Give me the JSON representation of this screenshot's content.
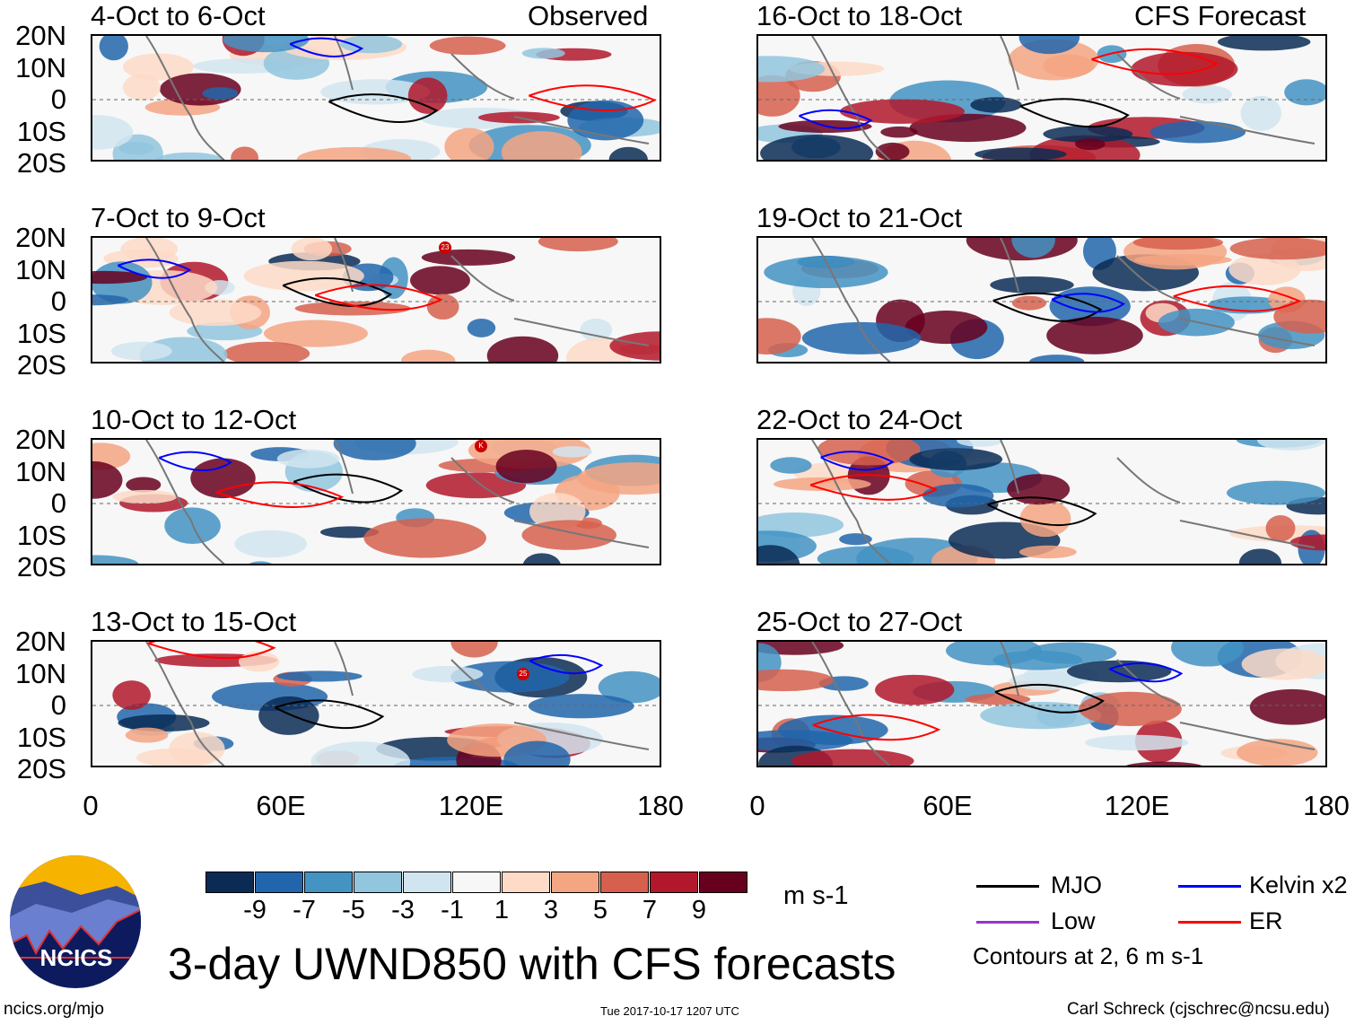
{
  "header": {
    "left_label": "Observed",
    "right_label": "CFS Forecast"
  },
  "panels": {
    "observed": [
      "4-Oct to 6-Oct",
      "7-Oct to 9-Oct",
      "10-Oct to 12-Oct",
      "13-Oct to 15-Oct"
    ],
    "forecast": [
      "16-Oct to 18-Oct",
      "19-Oct to 21-Oct",
      "22-Oct to 24-Oct",
      "25-Oct to 27-Oct"
    ]
  },
  "lat_labels": [
    "20N",
    "10N",
    "0",
    "10S",
    "20S"
  ],
  "lon_labels": [
    "0",
    "60E",
    "120E",
    "180"
  ],
  "storm_markers": [
    "23",
    "K",
    "25"
  ],
  "colorbar": {
    "colors": [
      "#0b2b55",
      "#2166ac",
      "#4393c3",
      "#92c5de",
      "#d1e5f0",
      "#f7f7f7",
      "#fddbc7",
      "#f4a582",
      "#d6604d",
      "#b2182b",
      "#67001f"
    ],
    "labels": [
      "-9",
      "-7",
      "-5",
      "-3",
      "-1",
      "1",
      "3",
      "5",
      "7",
      "9"
    ],
    "units": "m s-1"
  },
  "legend": {
    "items": [
      {
        "label": "MJO",
        "color": "#000000"
      },
      {
        "label": "Kelvin x2",
        "color": "#0000ff"
      },
      {
        "label": "Low",
        "color": "#9933cc"
      },
      {
        "label": "ER",
        "color": "#ff0000"
      }
    ],
    "note": "Contours at 2, 6 m s-1"
  },
  "logo": {
    "text": "NCICS"
  },
  "title": "3-day UWND850 with CFS forecasts",
  "footer": {
    "url": "ncics.org/mjo",
    "timestamp": "Tue 2017-10-17 1207 UTC",
    "credit": "Carl Schreck (cjschrec@ncsu.edu)"
  }
}
